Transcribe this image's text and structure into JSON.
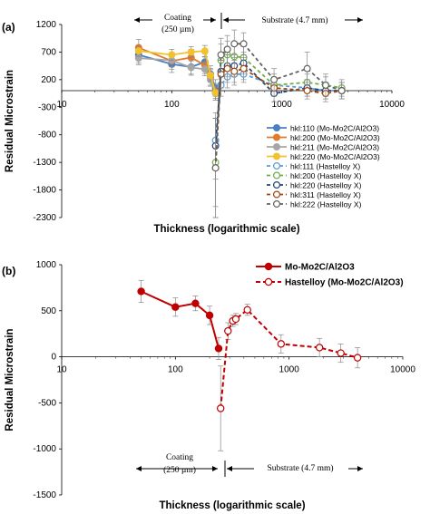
{
  "chart_data": [
    {
      "panel": "(a)",
      "type": "line",
      "xlabel": "Thickness (logarithmic scale)",
      "ylabel": "Residual Microstrain",
      "xscale": "log",
      "xlim": [
        10,
        10000
      ],
      "ylim": [
        -2300,
        1200
      ],
      "x_ticks": [
        "10",
        "100",
        "1000",
        "10000"
      ],
      "y_ticks": [
        "1200",
        "700",
        "200",
        "-300",
        "-800",
        "-1300",
        "-1800",
        "-2300"
      ],
      "legend": "right",
      "annotations": [
        {
          "text": "Coating",
          "text2": "(250 µm)"
        },
        {
          "text": "Substrate (4.7 mm)"
        }
      ],
      "series": [
        {
          "name": "hkl:110 (Mo-Mo2C/Al2O3)",
          "color": "#4a7fc1",
          "dashed": false,
          "x": [
            50,
            100,
            150,
            200,
            225,
            250
          ],
          "y": [
            650,
            480,
            430,
            520,
            300,
            50
          ],
          "err": [
            150,
            150,
            150,
            150,
            150,
            150
          ]
        },
        {
          "name": "hkl:200 (Mo-Mo2C/Al2O3)",
          "color": "#e07a2e",
          "dashed": false,
          "x": [
            50,
            100,
            150,
            200,
            225,
            250
          ],
          "y": [
            780,
            540,
            600,
            460,
            250,
            -20
          ],
          "err": [
            150,
            150,
            150,
            150,
            150,
            150
          ]
        },
        {
          "name": "hkl:211 (Mo-Mo2C/Al2O3)",
          "color": "#a6a6a6",
          "dashed": false,
          "x": [
            50,
            100,
            150,
            200,
            225,
            250
          ],
          "y": [
            590,
            550,
            420,
            390,
            200,
            -50
          ],
          "err": [
            120,
            120,
            120,
            120,
            120,
            120
          ]
        },
        {
          "name": "hkl:220 (Mo-Mo2C/Al2O3)",
          "color": "#f2c12e",
          "dashed": false,
          "x": [
            50,
            100,
            150,
            200,
            225,
            250
          ],
          "y": [
            720,
            650,
            700,
            720,
            280,
            -40
          ],
          "err": [
            100,
            100,
            100,
            100,
            100,
            100
          ]
        },
        {
          "name": "hkl:111 (Hastelloy X)",
          "color": "#5b9bd5",
          "dashed": true,
          "x": [
            250,
            280,
            320,
            370,
            450,
            850,
            1700,
            2500,
            3500
          ],
          "y": [
            -900,
            100,
            250,
            300,
            300,
            100,
            50,
            0,
            0
          ],
          "err": [
            400,
            200,
            200,
            200,
            150,
            150,
            150,
            150,
            150
          ]
        },
        {
          "name": "hkl:200 (Hastelloy X)",
          "color": "#70ad47",
          "dashed": true,
          "x": [
            250,
            280,
            320,
            370,
            450,
            850,
            1700,
            2500,
            3500
          ],
          "y": [
            -1300,
            550,
            650,
            620,
            600,
            100,
            150,
            100,
            50
          ],
          "err": [
            800,
            300,
            250,
            250,
            200,
            200,
            150,
            150,
            150
          ]
        },
        {
          "name": "hkl:220 (Hastelloy X)",
          "color": "#264478",
          "dashed": true,
          "x": [
            250,
            280,
            320,
            370,
            450,
            850,
            1700,
            2500,
            3500
          ],
          "y": [
            -1000,
            350,
            450,
            450,
            500,
            -50,
            50,
            0,
            0
          ],
          "err": [
            600,
            200,
            200,
            200,
            200,
            150,
            150,
            150,
            150
          ]
        },
        {
          "name": "hkl:311 (Hastelloy X)",
          "color": "#9e480e",
          "dashed": true,
          "x": [
            250,
            280,
            320,
            370,
            450,
            850,
            1700,
            2500,
            3500
          ],
          "y": [
            -1400,
            300,
            400,
            350,
            400,
            50,
            0,
            -50,
            0
          ],
          "err": [
            900,
            250,
            250,
            200,
            200,
            150,
            150,
            150,
            150
          ]
        },
        {
          "name": "hkl:222 (Hastelloy X)",
          "color": "#636363",
          "dashed": true,
          "x": [
            250,
            280,
            320,
            370,
            450,
            850,
            1700,
            2500,
            3500
          ],
          "y": [
            -1400,
            650,
            750,
            850,
            850,
            200,
            400,
            100,
            0
          ],
          "err": [
            900,
            300,
            250,
            250,
            200,
            200,
            300,
            200,
            150
          ]
        }
      ]
    },
    {
      "panel": "(b)",
      "type": "line",
      "xlabel": "Thickness (logarithmic scale)",
      "ylabel": "Residual Microstrain",
      "xscale": "log",
      "xlim": [
        10,
        10000
      ],
      "ylim": [
        -1500,
        1000
      ],
      "x_ticks": [
        "10",
        "100",
        "1000",
        "10000"
      ],
      "y_ticks": [
        "1000",
        "500",
        "0",
        "-500",
        "-1000",
        "-1500"
      ],
      "legend": "top-right",
      "annotations": [
        {
          "text": "Coating",
          "text2": "(250 µm)"
        },
        {
          "text": "Substrate (4.7 mm)"
        }
      ],
      "series": [
        {
          "name": "Mo-Mo2C/Al2O3",
          "color": "#c00000",
          "dashed": false,
          "x": [
            50,
            100,
            150,
            200,
            240
          ],
          "y": [
            710,
            540,
            580,
            450,
            90
          ],
          "err": [
            120,
            100,
            80,
            100,
            120
          ]
        },
        {
          "name": "Hastelloy (Mo-Mo2C/Al2O3)",
          "color": "#c00000",
          "dashed": true,
          "x": [
            250,
            290,
            320,
            340,
            430,
            850,
            1850,
            2850,
            4000
          ],
          "y": [
            -560,
            280,
            390,
            410,
            510,
            140,
            100,
            40,
            -10
          ],
          "err": [
            460,
            90,
            60,
            60,
            60,
            100,
            100,
            100,
            110
          ]
        }
      ]
    }
  ]
}
